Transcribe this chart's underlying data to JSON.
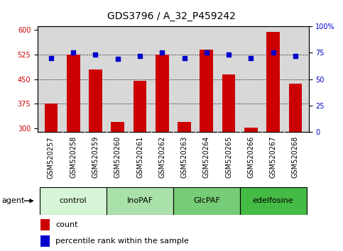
{
  "title": "GDS3796 / A_32_P459242",
  "samples": [
    "GSM520257",
    "GSM520258",
    "GSM520259",
    "GSM520260",
    "GSM520261",
    "GSM520262",
    "GSM520263",
    "GSM520264",
    "GSM520265",
    "GSM520266",
    "GSM520267",
    "GSM520268"
  ],
  "counts": [
    375,
    525,
    480,
    320,
    445,
    525,
    320,
    540,
    465,
    302,
    593,
    435
  ],
  "percentiles": [
    70,
    75,
    73,
    69,
    72,
    75,
    70,
    75,
    73,
    70,
    75,
    72
  ],
  "groups": [
    {
      "label": "control",
      "start": 0,
      "end": 3,
      "color": "#d6f5d6"
    },
    {
      "label": "InoPAF",
      "start": 3,
      "end": 6,
      "color": "#aae0aa"
    },
    {
      "label": "GlcPAF",
      "start": 6,
      "end": 9,
      "color": "#77cc77"
    },
    {
      "label": "edelfosine",
      "start": 9,
      "end": 12,
      "color": "#44bb44"
    }
  ],
  "ylim_left": [
    290,
    610
  ],
  "ylim_right": [
    0,
    100
  ],
  "yticks_left": [
    300,
    375,
    450,
    525,
    600
  ],
  "yticks_right": [
    0,
    25,
    50,
    75,
    100
  ],
  "bar_color": "#cc0000",
  "dot_color": "#0000cc",
  "bar_width": 0.6,
  "grid_lines": [
    375,
    450,
    525
  ],
  "plot_bg": "#d8d8d8",
  "title_fontsize": 10,
  "tick_fontsize": 7,
  "label_fontsize": 8,
  "legend_fontsize": 8,
  "xtick_bg": "#cccccc"
}
